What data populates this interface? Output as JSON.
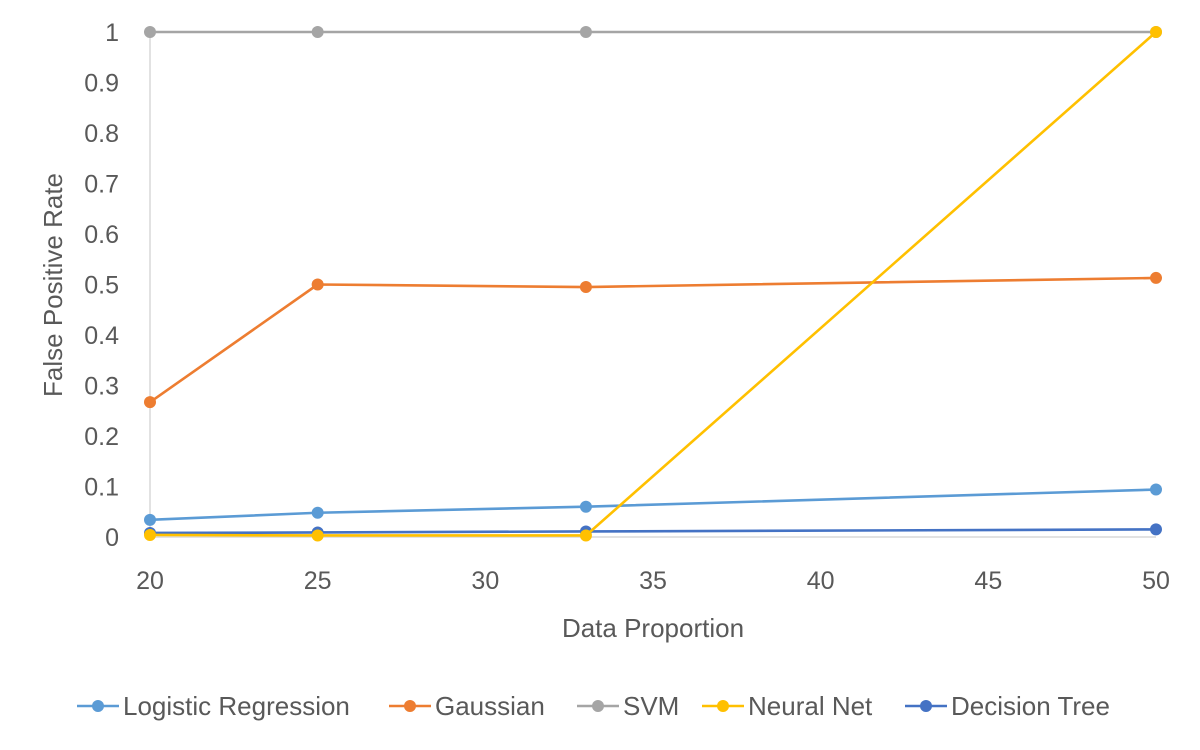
{
  "chart_data": {
    "type": "line",
    "title": "",
    "xlabel": "Data Proportion",
    "ylabel": "False Positive Rate",
    "xlim": [
      20,
      50
    ],
    "ylim": [
      0,
      1
    ],
    "x_ticks": [
      "20",
      "25",
      "30",
      "35",
      "40",
      "45",
      "50"
    ],
    "y_ticks": [
      "0",
      "0.1",
      "0.2",
      "0.3",
      "0.4",
      "0.5",
      "0.6",
      "0.7",
      "0.8",
      "0.9",
      "1"
    ],
    "x": [
      20,
      25,
      33,
      50
    ],
    "grid": false,
    "legend_position": "bottom",
    "series": [
      {
        "name": "Logistic Regression",
        "color": "#5B9BD5",
        "values": [
          0.034,
          0.048,
          0.06,
          0.094
        ]
      },
      {
        "name": "Gaussian",
        "color": "#ED7D31",
        "values": [
          0.267,
          0.5,
          0.495,
          0.513
        ]
      },
      {
        "name": "SVM",
        "color": "#A5A5A5",
        "values": [
          1.0,
          1.0,
          1.0,
          1.0
        ]
      },
      {
        "name": "Neural Net",
        "color": "#FFC000",
        "values": [
          0.004,
          0.003,
          0.003,
          1.0
        ]
      },
      {
        "name": "Decision Tree",
        "color": "#4472C4",
        "values": [
          0.008,
          0.009,
          0.011,
          0.015
        ]
      }
    ]
  }
}
